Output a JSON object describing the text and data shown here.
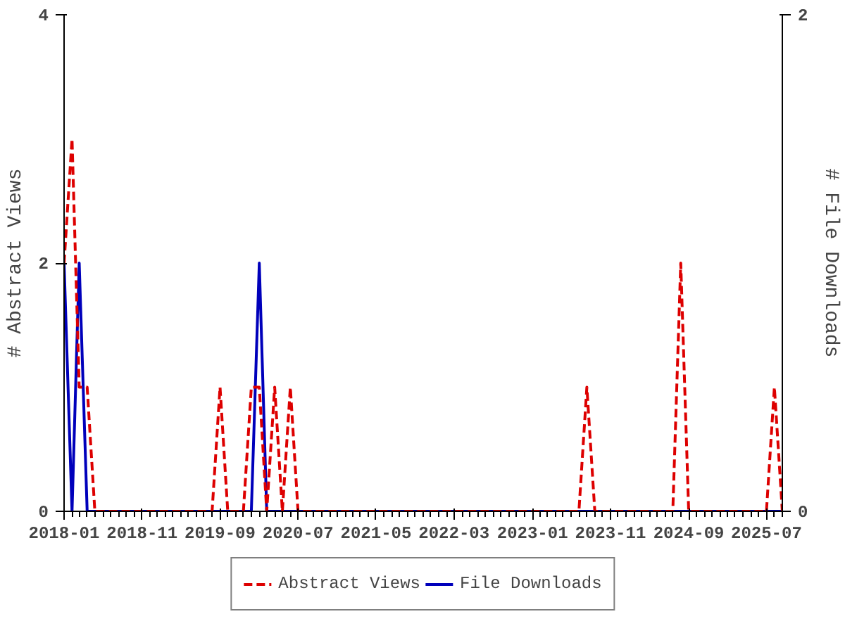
{
  "chart_data": {
    "type": "line",
    "xlabel": null,
    "ylabel": "# Abstract Views",
    "y2label": "# File Downloads",
    "x": [
      "2018-01",
      "2018-02",
      "2018-03",
      "2018-04",
      "2018-05",
      "2018-06",
      "2018-07",
      "2018-08",
      "2018-09",
      "2018-10",
      "2018-11",
      "2018-12",
      "2019-01",
      "2019-02",
      "2019-03",
      "2019-04",
      "2019-05",
      "2019-06",
      "2019-07",
      "2019-08",
      "2019-09",
      "2019-10",
      "2019-11",
      "2019-12",
      "2020-01",
      "2020-02",
      "2020-03",
      "2020-04",
      "2020-05",
      "2020-06",
      "2020-07",
      "2020-08",
      "2020-09",
      "2020-10",
      "2020-11",
      "2020-12",
      "2021-01",
      "2021-02",
      "2021-03",
      "2021-04",
      "2021-05",
      "2021-06",
      "2021-07",
      "2021-08",
      "2021-09",
      "2021-10",
      "2021-11",
      "2021-12",
      "2022-01",
      "2022-02",
      "2022-03",
      "2022-04",
      "2022-05",
      "2022-06",
      "2022-07",
      "2022-08",
      "2022-09",
      "2022-10",
      "2022-11",
      "2022-12",
      "2023-01",
      "2023-02",
      "2023-03",
      "2023-04",
      "2023-05",
      "2023-06",
      "2023-07",
      "2023-08",
      "2023-09",
      "2023-10",
      "2023-11",
      "2023-12",
      "2024-01",
      "2024-02",
      "2024-03",
      "2024-04",
      "2024-05",
      "2024-06",
      "2024-07",
      "2024-08",
      "2024-09",
      "2024-10",
      "2024-11",
      "2024-12",
      "2025-01",
      "2025-02",
      "2025-03",
      "2025-04",
      "2025-05",
      "2025-06",
      "2025-07",
      "2025-08",
      "2025-09"
    ],
    "series": [
      {
        "name": "Abstract Views",
        "color": "#dd0000",
        "line_style": "dashed",
        "values": [
          2,
          3,
          1,
          1,
          0,
          0,
          0,
          0,
          0,
          0,
          0,
          0,
          0,
          0,
          0,
          0,
          0,
          0,
          0,
          0,
          1,
          0,
          0,
          0,
          1,
          1,
          0,
          1,
          0,
          1,
          0,
          0,
          0,
          0,
          0,
          0,
          0,
          0,
          0,
          0,
          0,
          0,
          0,
          0,
          0,
          0,
          0,
          0,
          0,
          0,
          0,
          0,
          0,
          0,
          0,
          0,
          0,
          0,
          0,
          0,
          0,
          0,
          0,
          0,
          0,
          0,
          0,
          1,
          0,
          0,
          0,
          0,
          0,
          0,
          0,
          0,
          0,
          0,
          0,
          2,
          0,
          0,
          0,
          0,
          0,
          0,
          0,
          0,
          0,
          0,
          0,
          1,
          0
        ]
      },
      {
        "name": "File Downloads",
        "color": "#0000bb",
        "line_style": "solid",
        "axis": "y2",
        "values": [
          1,
          0,
          1,
          0,
          0,
          0,
          0,
          0,
          0,
          0,
          0,
          0,
          0,
          0,
          0,
          0,
          0,
          0,
          0,
          0,
          0,
          0,
          0,
          0,
          0,
          1,
          0,
          0,
          0,
          0,
          0,
          0,
          0,
          0,
          0,
          0,
          0,
          0,
          0,
          0,
          0,
          0,
          0,
          0,
          0,
          0,
          0,
          0,
          0,
          0,
          0,
          0,
          0,
          0,
          0,
          0,
          0,
          0,
          0,
          0,
          0,
          0,
          0,
          0,
          0,
          0,
          0,
          0,
          0,
          0,
          0,
          0,
          0,
          0,
          0,
          0,
          0,
          0,
          0,
          0,
          0,
          0,
          0,
          0,
          0,
          0,
          0,
          0,
          0,
          0,
          0,
          0,
          0
        ]
      }
    ],
    "xlim": [
      "2018-01",
      "2025-09"
    ],
    "xticks": [
      "2018-01",
      "2018-11",
      "2019-09",
      "2020-07",
      "2021-05",
      "2022-03",
      "2023-01",
      "2023-11",
      "2024-09",
      "2025-07"
    ],
    "ylim": [
      0,
      4
    ],
    "yticks": [
      0,
      2,
      4
    ],
    "y2lim": [
      0,
      2
    ],
    "y2ticks": [
      0,
      2
    ],
    "grid": false,
    "legend": "bottom",
    "marker": "none"
  }
}
